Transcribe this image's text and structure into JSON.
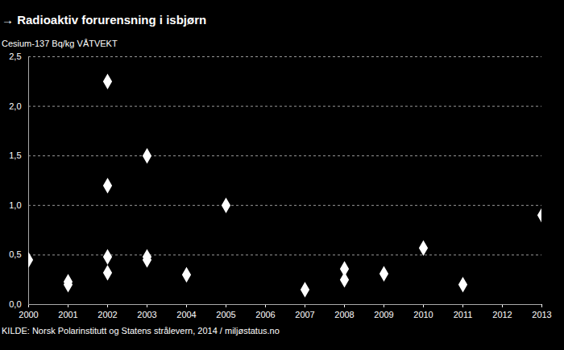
{
  "chart_data": {
    "type": "scatter",
    "title": "→ Radioaktiv forurensning i isbjørn",
    "subtitle": "Cesium-137 Bq/kg VÅTVEKT",
    "source": "KILDE: Norsk Polarinstitutt og Statens strålevern, 2014 / miljøstatus.no",
    "x": [
      2000,
      2001,
      2001,
      2002,
      2002,
      2002,
      2002,
      2003,
      2003,
      2003,
      2004,
      2005,
      2007,
      2008,
      2008,
      2009,
      2010,
      2011,
      2013
    ],
    "values": [
      0.45,
      0.23,
      0.2,
      2.25,
      1.2,
      0.48,
      0.32,
      1.5,
      0.48,
      0.45,
      0.3,
      1.0,
      0.15,
      0.36,
      0.25,
      0.31,
      0.57,
      0.2,
      0.9
    ],
    "color": "#ffffff",
    "marker": "diamond",
    "xlim": [
      2000,
      2013
    ],
    "xticks": [
      2000,
      2001,
      2002,
      2003,
      2004,
      2005,
      2006,
      2007,
      2008,
      2009,
      2010,
      2011,
      2012,
      2013
    ],
    "ylim": [
      0,
      2.5
    ],
    "yticks": [
      {
        "value": 0,
        "label": "0,0"
      },
      {
        "value": 0.5,
        "label": "0,5"
      },
      {
        "value": 1,
        "label": "1,0"
      },
      {
        "value": 1.5,
        "label": "1,5"
      },
      {
        "value": 2,
        "label": "2,0"
      },
      {
        "value": 2.5,
        "label": "2,5"
      }
    ],
    "grid": true
  }
}
